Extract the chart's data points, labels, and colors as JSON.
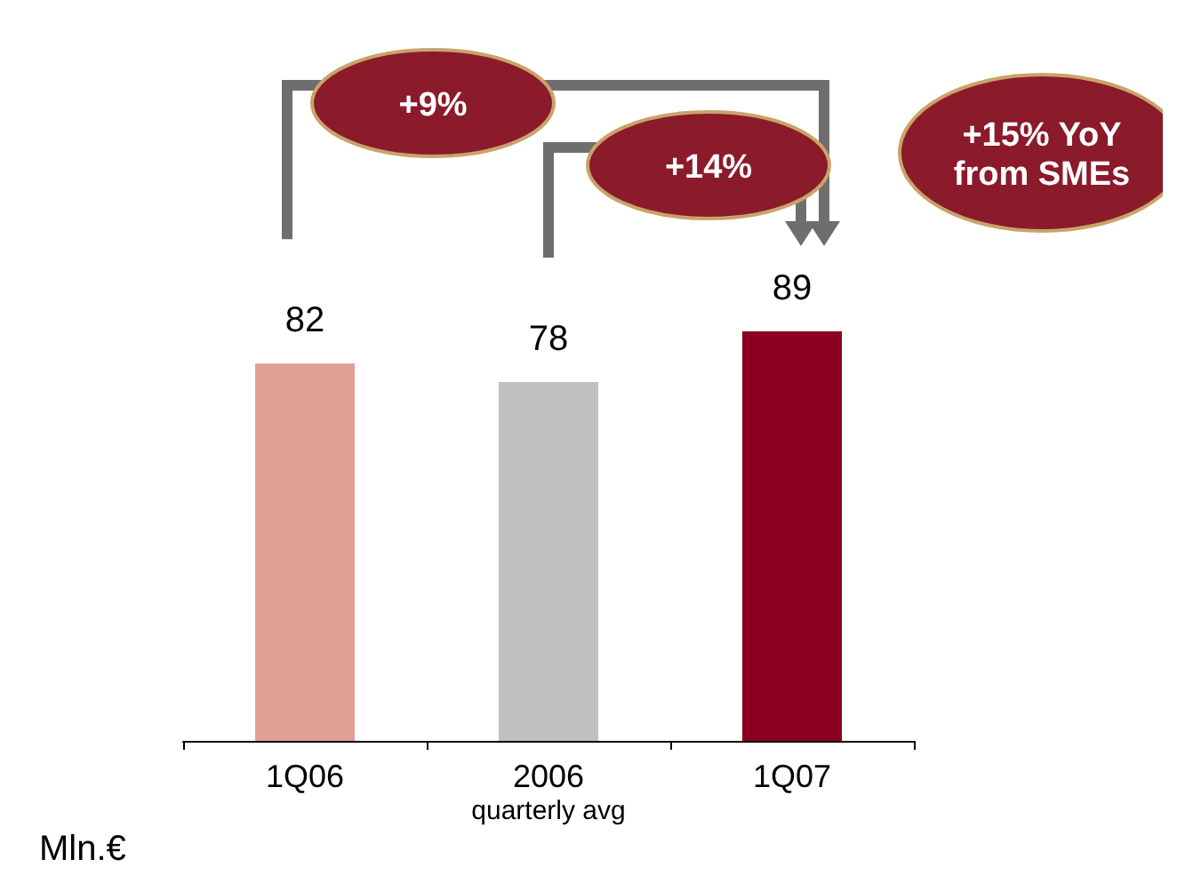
{
  "chart_data": {
    "type": "bar",
    "categories": [
      "1Q06",
      "2006\nquarterly avg",
      "1Q07"
    ],
    "values": [
      82,
      78,
      89
    ],
    "colors": [
      "#dfa093",
      "#c0c0c0",
      "#8b0020"
    ],
    "data_labels": true,
    "tick_labels": "x",
    "grid": false,
    "annotations": [
      "+9%",
      "+14%",
      "+15% YoY\nfrom SMEs",
      "Mln.€"
    ]
  }
}
